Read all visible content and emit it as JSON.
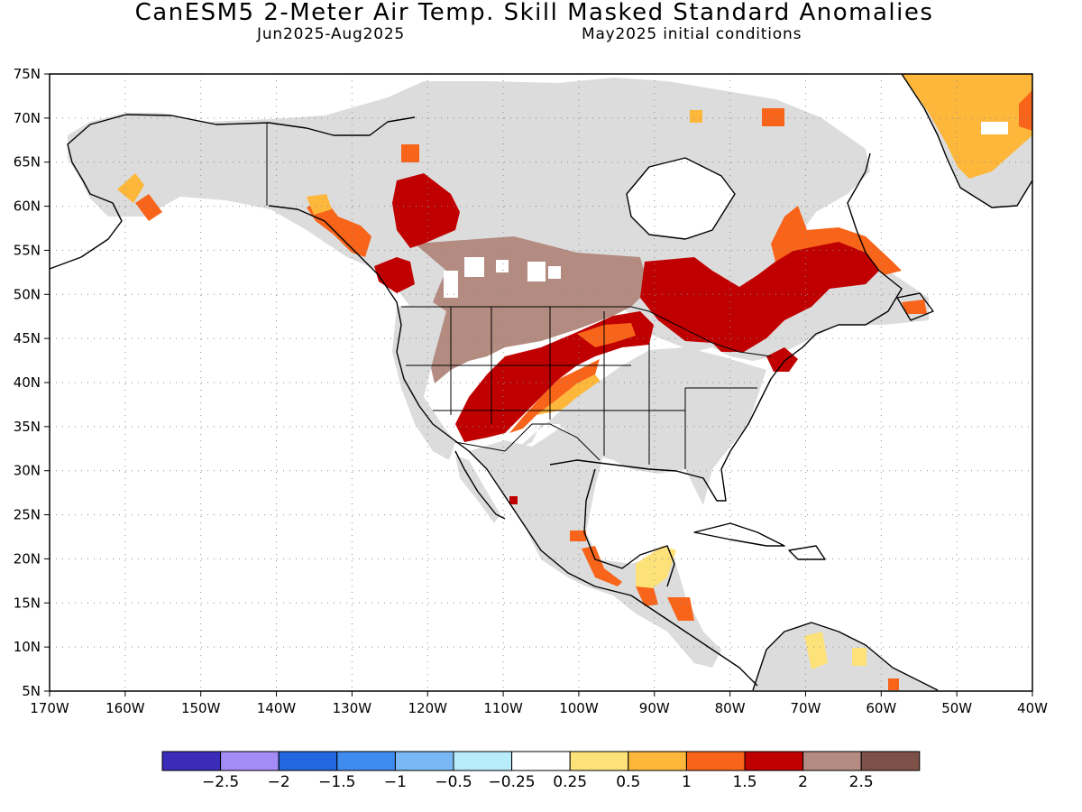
{
  "title": "CanESM5 2-Meter Air Temp. Skill Masked Standard Anomalies",
  "subtitle_period": "Jun2025-Aug2025",
  "subtitle_init": "May2025 initial conditions",
  "map": {
    "lon_range": [
      -170,
      -40
    ],
    "lat_range": [
      5,
      75
    ],
    "lon_ticks": [
      "170W",
      "160W",
      "150W",
      "140W",
      "130W",
      "120W",
      "110W",
      "100W",
      "90W",
      "80W",
      "70W",
      "60W",
      "50W",
      "40W"
    ],
    "lat_ticks": [
      "5N",
      "10N",
      "15N",
      "20N",
      "25N",
      "30N",
      "35N",
      "40N",
      "45N",
      "50N",
      "55N",
      "60N",
      "65N",
      "70N",
      "75N"
    ],
    "grid": "dotted"
  },
  "colorbar": {
    "colors": [
      "#3a2bb8",
      "#a38cf5",
      "#2266e0",
      "#3f8cf0",
      "#7ab8f5",
      "#b8ecfa",
      "#ffffff",
      "#fde27a",
      "#fdb73b",
      "#f7641a",
      "#c00000",
      "#b38b80",
      "#7d5148"
    ],
    "labels": [
      "−2.5",
      "−2",
      "−1.5",
      "−1",
      "−0.5",
      "−0.25",
      "0.25",
      "0.5",
      "1",
      "1.5",
      "2",
      "2.5"
    ]
  },
  "colors": {
    "masked": "#dcdcdc",
    "coast": "#000000"
  }
}
